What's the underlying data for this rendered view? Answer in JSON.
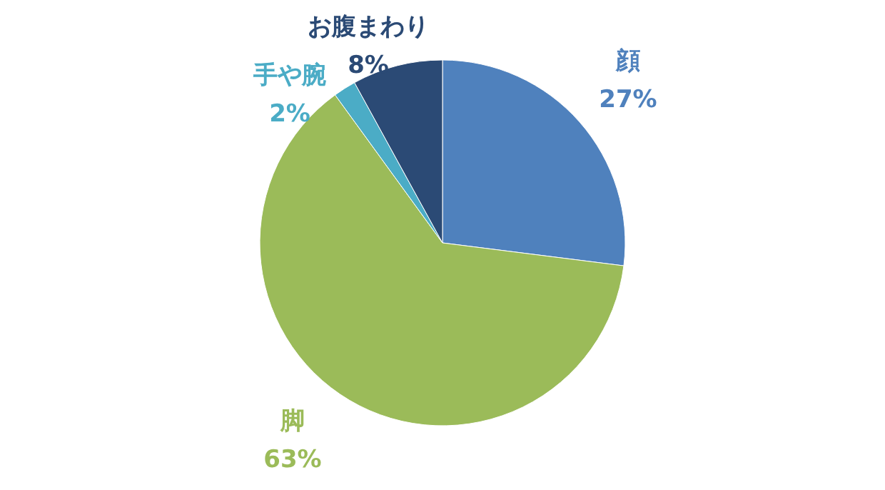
{
  "chart_data": {
    "type": "pie",
    "categories": [
      "顔",
      "脚",
      "手や腕",
      "お腹まわり"
    ],
    "values": [
      27,
      63,
      2,
      8
    ],
    "colors": [
      "#4f81bd",
      "#9bbb59",
      "#4bacc6",
      "#2b4a75"
    ],
    "value_labels": [
      "27%",
      "63%",
      "2%",
      "8%"
    ]
  }
}
